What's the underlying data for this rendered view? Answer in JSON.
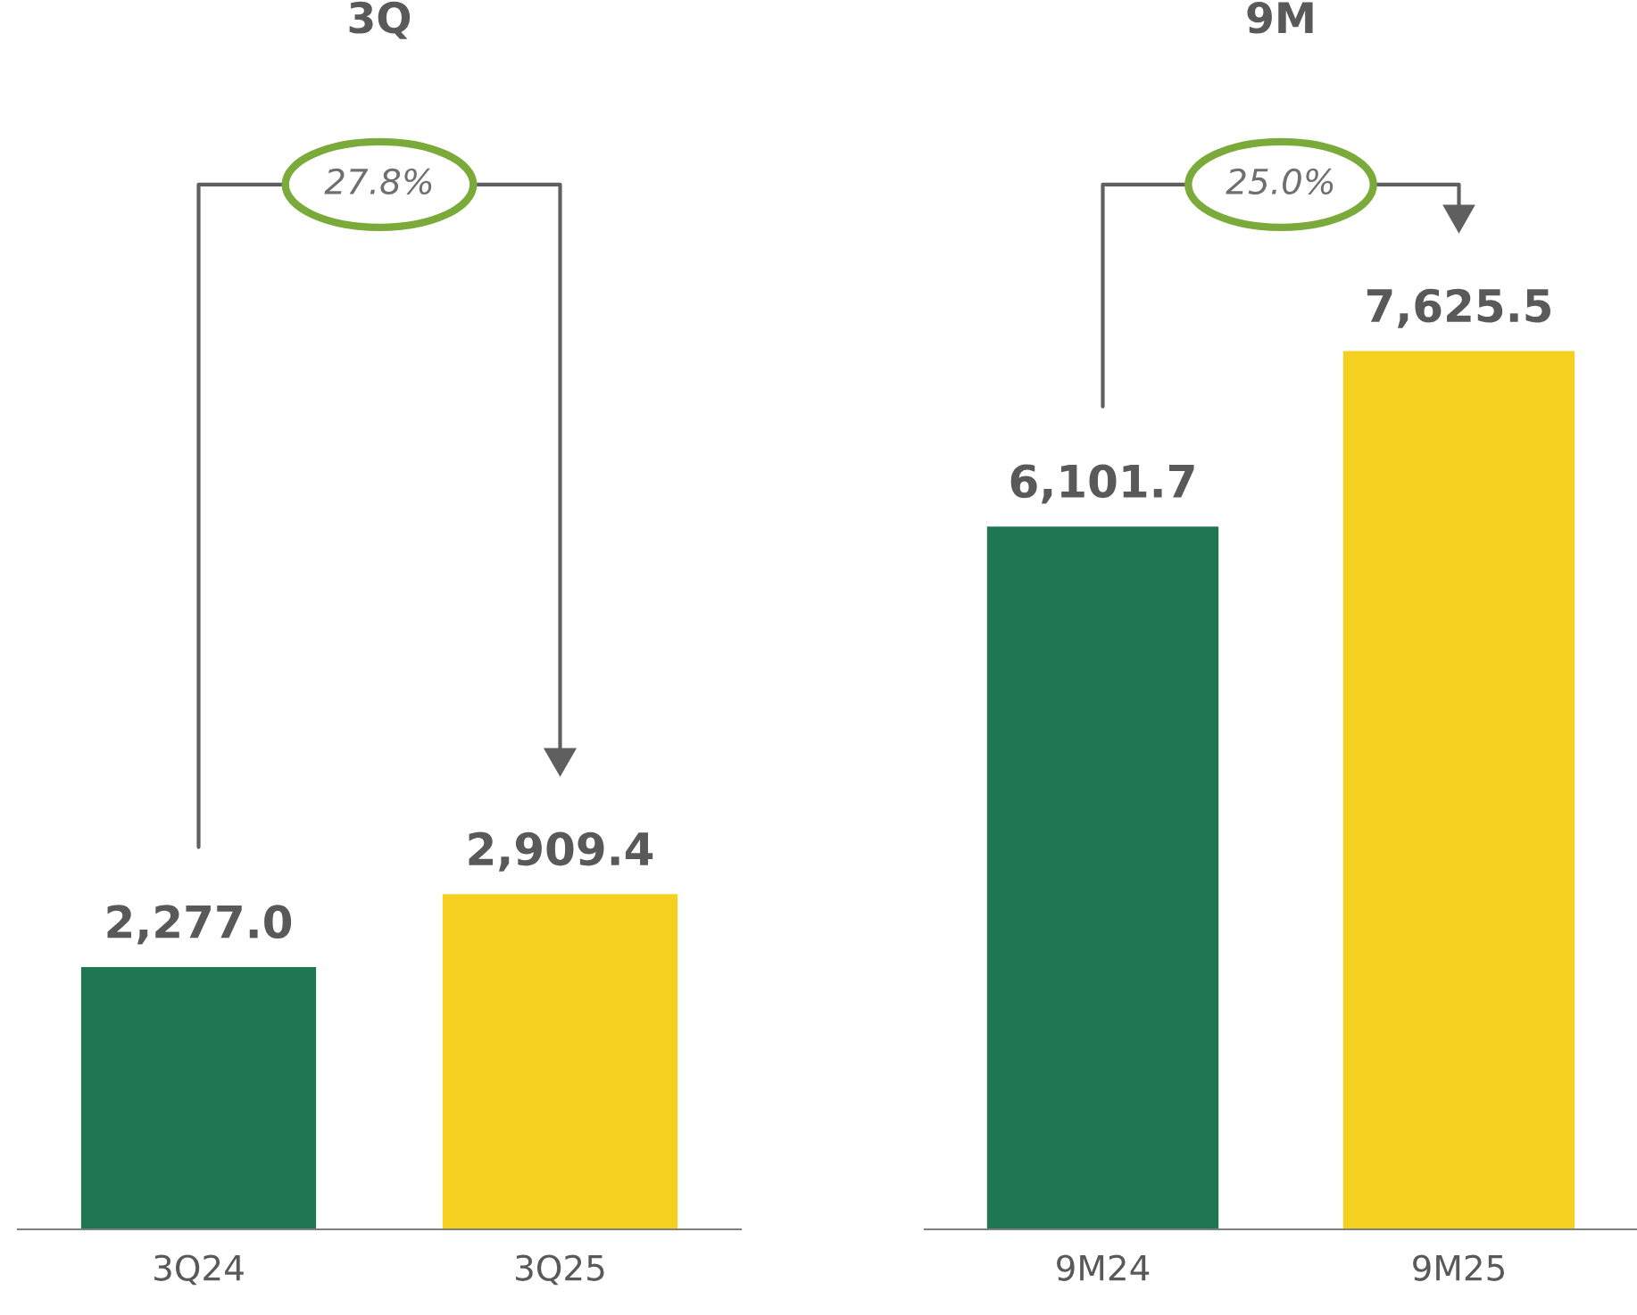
{
  "chart_data": [
    {
      "type": "bar",
      "title": "3Q",
      "categories": [
        "3Q24",
        "3Q25"
      ],
      "colors": [
        "#1e7752",
        "#f5d01e"
      ],
      "values": [
        2277.0,
        2909.4
      ],
      "value_labels": [
        "2,277.0",
        "2,909.4"
      ],
      "annotations": [
        "27.8%"
      ]
    },
    {
      "type": "bar",
      "title": "9M",
      "categories": [
        "9M24",
        "9M25"
      ],
      "colors": [
        "#1e7752",
        "#f5d01e"
      ],
      "values": [
        6101.7,
        7625.5
      ],
      "value_labels": [
        "6,101.7",
        "7,625.5"
      ],
      "annotations": [
        "25.0%"
      ]
    }
  ]
}
